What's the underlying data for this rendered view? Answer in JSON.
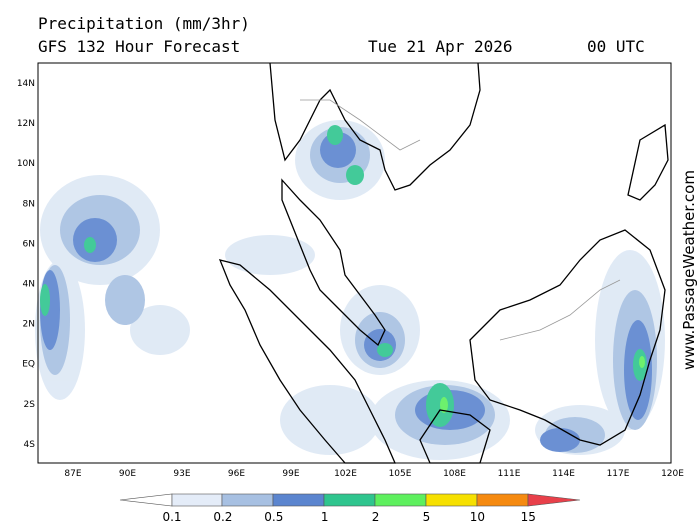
{
  "header": {
    "title": "Precipitation (mm/3hr)",
    "subtitle": "GFS 132 Hour Forecast",
    "date": "Tue 21 Apr 2026",
    "time": "00 UTC"
  },
  "map": {
    "lat_labels": [
      "14N",
      "12N",
      "10N",
      "8N",
      "6N",
      "4N",
      "2N",
      "EQ",
      "2S",
      "4S"
    ],
    "lon_labels": [
      "87E",
      "90E",
      "93E",
      "96E",
      "99E",
      "102E",
      "105E",
      "108E",
      "111E",
      "114E",
      "117E",
      "120E"
    ]
  },
  "legend": {
    "labels": [
      "0.1",
      "0.2",
      "0.5",
      "1",
      "2",
      "5",
      "10",
      "15"
    ]
  },
  "watermark": "www.PassageWeather.com"
}
